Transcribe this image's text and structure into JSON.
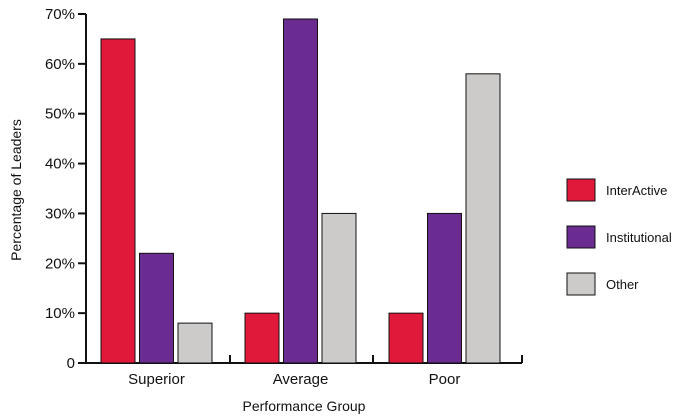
{
  "chart_data": {
    "type": "bar",
    "categories": [
      "Superior",
      "Average",
      "Poor"
    ],
    "series": [
      {
        "name": "InterActive",
        "values": [
          65,
          10,
          10
        ],
        "color": "#e0193a"
      },
      {
        "name": "Institutional",
        "values": [
          22,
          69,
          30
        ],
        "color": "#6a2c91"
      },
      {
        "name": "Other",
        "values": [
          8,
          30,
          58
        ],
        "color": "#cccbca"
      }
    ],
    "xlabel": "Performance Group",
    "ylabel": "Percentage of Leaders",
    "ylim": [
      0,
      70
    ],
    "yticks": [
      0,
      10,
      20,
      30,
      40,
      50,
      60,
      70
    ],
    "ytick_labels": [
      "0",
      "10%",
      "20%",
      "30%",
      "40%",
      "50%",
      "60%",
      "70%"
    ],
    "grid": false,
    "legend_position": "right"
  }
}
